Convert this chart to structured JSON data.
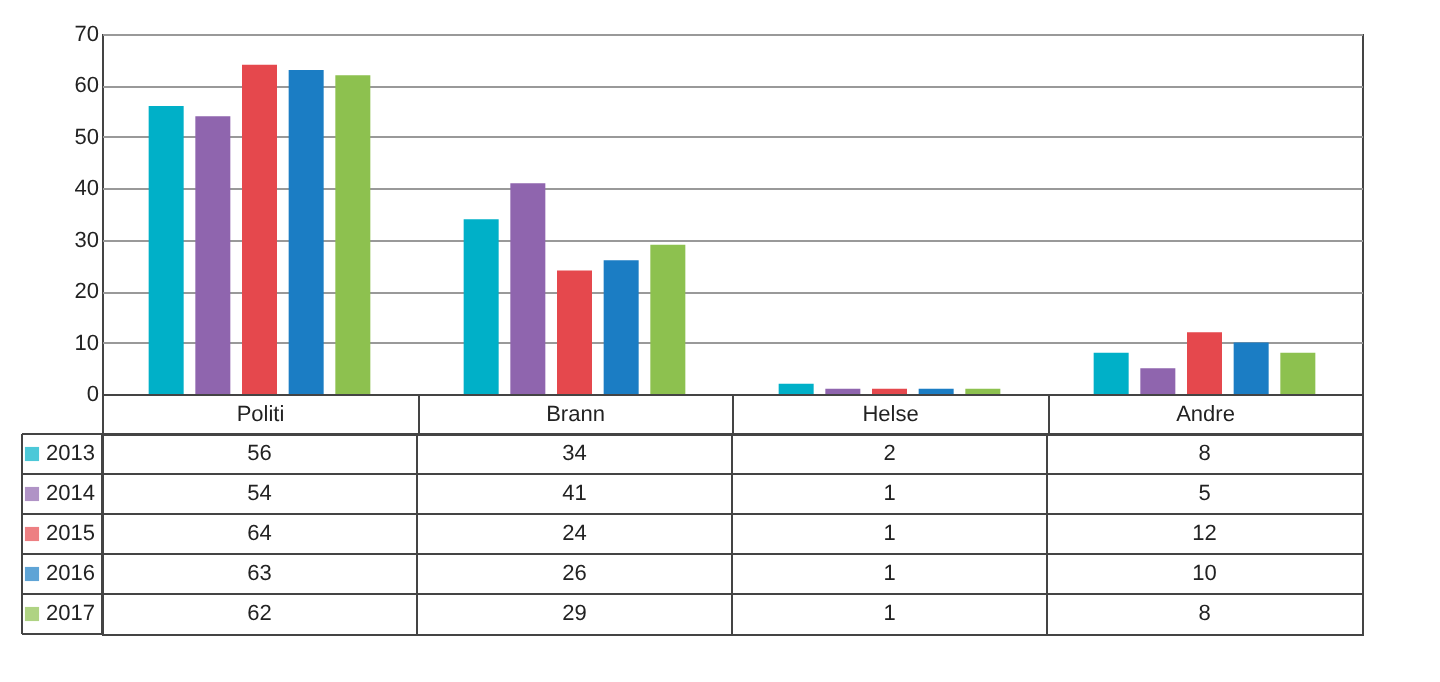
{
  "chart_data": {
    "type": "bar",
    "categories": [
      "Politi",
      "Brann",
      "Helse",
      "Andre"
    ],
    "series": [
      {
        "name": "2013",
        "color": "#00b0c8",
        "values": [
          56,
          34,
          2,
          8
        ]
      },
      {
        "name": "2014",
        "color": "#8f65ae",
        "values": [
          54,
          41,
          1,
          5
        ]
      },
      {
        "name": "2015",
        "color": "#e5484d",
        "values": [
          64,
          24,
          1,
          12
        ]
      },
      {
        "name": "2016",
        "color": "#1b7dc4",
        "values": [
          63,
          26,
          1,
          10
        ]
      },
      {
        "name": "2017",
        "color": "#8dc14f",
        "values": [
          62,
          29,
          1,
          8
        ]
      }
    ],
    "ylim": [
      0,
      70
    ],
    "yticks": [
      0,
      10,
      20,
      30,
      40,
      50,
      60,
      70
    ],
    "grid": "y",
    "legend": "bottom",
    "data_labels": true
  }
}
